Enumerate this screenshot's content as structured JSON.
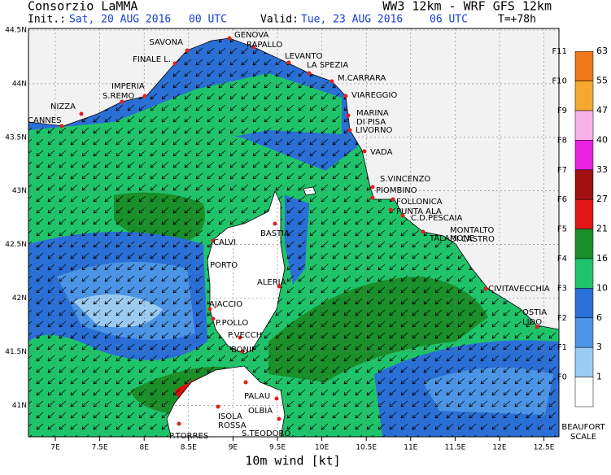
{
  "header": {
    "org": "Consorzio LaMMA",
    "model": "WW3 12km - WRF GFS 12km",
    "init_label": "Init.:",
    "init_date": "Sat, 20 AUG 2016",
    "init_time": "00 UTC",
    "valid_label": "Valid:",
    "valid_date": "Tue, 23 AUG 2016",
    "valid_time": "06 UTC",
    "lead": "T=+78h"
  },
  "axes": {
    "x_ticks": [
      "7E",
      "7.5E",
      "8E",
      "8.5E",
      "9E",
      "9.5E",
      "10E",
      "10.5E",
      "11E",
      "11.5E",
      "12E",
      "12.5E"
    ],
    "y_ticks": [
      "44.5N",
      "44N",
      "43.5N",
      "43N",
      "42.5N",
      "42N",
      "41.5N",
      "41N"
    ],
    "x_title": "10m wind [kt]"
  },
  "legend": {
    "classes": [
      {
        "force": "F11",
        "kt": 63
      },
      {
        "force": "F10",
        "kt": 55
      },
      {
        "force": "F9",
        "kt": 47
      },
      {
        "force": "F8",
        "kt": 40
      },
      {
        "force": "F7",
        "kt": 33
      },
      {
        "force": "F6",
        "kt": 27
      },
      {
        "force": "F5",
        "kt": 21
      },
      {
        "force": "F4",
        "kt": 16
      },
      {
        "force": "F3",
        "kt": 10
      },
      {
        "force": "F2",
        "kt": 6
      },
      {
        "force": "F1",
        "kt": 3
      },
      {
        "force": "F0",
        "kt": 1
      }
    ],
    "title_1": "BEAUFORT",
    "title_2": "SCALE"
  },
  "places": [
    "SAVONA",
    "GENOVA",
    "RAPALLO",
    "FINALE L.",
    "LEVANTO",
    "LA SPEZIA",
    "M.CARRARA",
    "IMPERIA",
    "S.REMO",
    "NIZZA",
    "CANNES",
    "VIAREGGIO",
    "MARINA",
    "DI PISA",
    "LIVORNO",
    "VADA",
    "S.VINCENZO",
    "PIOMBINO",
    "FOLLONICA",
    "PUNTA ALA",
    "C.D.PESCAIA",
    "TALAMONE",
    "MONTALTO",
    "DI CASTRO",
    "CIVITAVECCHIA",
    "OSTIA",
    "LIDO",
    "BASTIA",
    "CALVI",
    "PORTO",
    "ALERIA",
    "AJACCIO",
    "P.POLLO",
    "P.VECCH",
    "BONIF",
    "PALAU",
    "OLBIA",
    "ISOLA",
    "ROSSA",
    "S.TEODORO",
    "P.TORRES"
  ]
}
